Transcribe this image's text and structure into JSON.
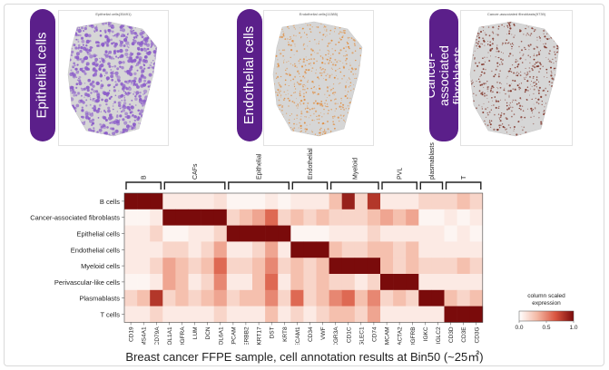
{
  "panels": [
    {
      "label": "Epithelial cells",
      "title": "Epithelial cells(35491)",
      "color": "#8b5cc9"
    },
    {
      "label": "Endothelial cells",
      "title": "Endothelial cells(11385)",
      "color": "#e08a3a"
    },
    {
      "label": "Cancer-associated fibroblasts",
      "title": "Cancer-associated fibroblasts(9739)",
      "color": "#7a2a1e"
    }
  ],
  "caption": "Breast cancer FFPE sample, cell annotation results at Bin50 (~25㎡)",
  "chart_data": {
    "type": "heatmap",
    "rows": [
      "B cells",
      "Cancer-associated fibroblasts",
      "Epithelial cells",
      "Endothelial cells",
      "Myeloid cells",
      "Perivascular-like cells",
      "Plasmablasts",
      "T cells"
    ],
    "columns": [
      "CD19",
      "MS4A1",
      "CD79A",
      "COL1A1",
      "PDGFRA",
      "LUM",
      "DCN",
      "COL6A1",
      "EPCAM",
      "ERBB2",
      "KRT17",
      "DST",
      "KRT8",
      "PECAM1",
      "CD34",
      "VWF",
      "FCGR3A",
      "CD1C",
      "SIGLEC1",
      "CD74",
      "MCAM",
      "ACTA2",
      "PDGFRB",
      "IGKC",
      "IGLC2",
      "CD3D",
      "CD3E",
      "CD3G"
    ],
    "groups": [
      {
        "name": "B",
        "start": 0,
        "end": 2
      },
      {
        "name": "CAFs",
        "start": 3,
        "end": 7
      },
      {
        "name": "Epithelial",
        "start": 8,
        "end": 12
      },
      {
        "name": "Endothelial",
        "start": 13,
        "end": 15
      },
      {
        "name": "Myeloid",
        "start": 16,
        "end": 19
      },
      {
        "name": "PVL",
        "start": 20,
        "end": 22
      },
      {
        "name": "plasmablasts",
        "start": 23,
        "end": 24
      },
      {
        "name": "T",
        "start": 25,
        "end": 27
      }
    ],
    "values": [
      [
        1.0,
        1.0,
        1.0,
        0.1,
        0.1,
        0.1,
        0.1,
        0.15,
        0.05,
        0.05,
        0.05,
        0.1,
        0.05,
        0.1,
        0.1,
        0.1,
        0.3,
        0.9,
        0.2,
        0.8,
        0.1,
        0.1,
        0.1,
        0.2,
        0.2,
        0.2,
        0.3,
        0.2
      ],
      [
        0.05,
        0.05,
        0.1,
        1.0,
        1.0,
        1.0,
        1.0,
        1.0,
        0.2,
        0.3,
        0.4,
        0.6,
        0.2,
        0.3,
        0.2,
        0.3,
        0.2,
        0.2,
        0.2,
        0.3,
        0.4,
        0.3,
        0.4,
        0.05,
        0.05,
        0.1,
        0.05,
        0.1
      ],
      [
        0.1,
        0.1,
        0.2,
        0.05,
        0.05,
        0.1,
        0.1,
        0.2,
        1.0,
        1.0,
        1.0,
        1.0,
        1.0,
        0.05,
        0.05,
        0.05,
        0.1,
        0.1,
        0.1,
        0.2,
        0.1,
        0.1,
        0.1,
        0.1,
        0.1,
        0.05,
        0.1,
        0.05
      ],
      [
        0.1,
        0.1,
        0.1,
        0.2,
        0.2,
        0.1,
        0.2,
        0.4,
        0.1,
        0.1,
        0.2,
        0.4,
        0.1,
        1.0,
        1.0,
        1.0,
        0.3,
        0.2,
        0.2,
        0.3,
        0.3,
        0.2,
        0.3,
        0.1,
        0.1,
        0.1,
        0.1,
        0.1
      ],
      [
        0.1,
        0.1,
        0.2,
        0.4,
        0.3,
        0.2,
        0.3,
        0.6,
        0.2,
        0.2,
        0.3,
        0.5,
        0.2,
        0.3,
        0.2,
        0.3,
        1.0,
        1.0,
        1.0,
        1.0,
        0.3,
        0.2,
        0.3,
        0.2,
        0.2,
        0.2,
        0.3,
        0.2
      ],
      [
        0.05,
        0.05,
        0.1,
        0.4,
        0.3,
        0.1,
        0.2,
        0.5,
        0.1,
        0.1,
        0.3,
        0.6,
        0.1,
        0.3,
        0.2,
        0.3,
        0.2,
        0.2,
        0.1,
        0.2,
        1.0,
        1.0,
        1.0,
        0.1,
        0.1,
        0.1,
        0.1,
        0.1
      ],
      [
        0.2,
        0.3,
        0.8,
        0.2,
        0.3,
        0.2,
        0.3,
        0.4,
        0.2,
        0.3,
        0.3,
        0.5,
        0.2,
        0.6,
        0.2,
        0.3,
        0.5,
        0.6,
        0.3,
        0.5,
        0.2,
        0.3,
        0.2,
        1.0,
        1.0,
        0.3,
        0.2,
        0.3
      ],
      [
        0.1,
        0.1,
        0.2,
        0.1,
        0.1,
        0.1,
        0.1,
        0.2,
        0.1,
        0.1,
        0.1,
        0.3,
        0.1,
        0.2,
        0.1,
        0.2,
        0.3,
        0.3,
        0.2,
        0.4,
        0.1,
        0.1,
        0.1,
        0.1,
        0.1,
        1.0,
        1.0,
        1.0
      ]
    ],
    "legend": {
      "title": "column scaled expression",
      "ticks": [
        "0.0",
        "0.5",
        "1.0"
      ],
      "colors": [
        "#ffffff",
        "#f4b9a5",
        "#d9553f",
        "#7a0b0b"
      ]
    }
  }
}
